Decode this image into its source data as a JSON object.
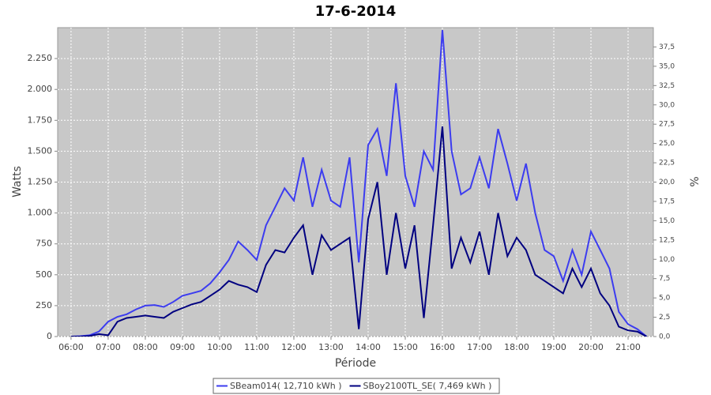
{
  "chart_data": {
    "type": "line",
    "title": "17-6-2014",
    "x_label": "Période",
    "y_label": "Watts",
    "y2_label": "%",
    "x": [
      6,
      6.25,
      6.5,
      6.75,
      7,
      7.25,
      7.5,
      7.75,
      8,
      8.25,
      8.5,
      8.75,
      9,
      9.25,
      9.5,
      9.75,
      10,
      10.25,
      10.5,
      10.75,
      11,
      11.25,
      11.5,
      11.75,
      12,
      12.25,
      12.5,
      12.75,
      13,
      13.25,
      13.5,
      13.75,
      14,
      14.25,
      14.5,
      14.75,
      15,
      15.25,
      15.5,
      15.75,
      16,
      16.25,
      16.5,
      16.75,
      17,
      17.25,
      17.5,
      17.75,
      18,
      18.25,
      18.5,
      18.75,
      19,
      19.25,
      19.5,
      19.75,
      20,
      20.25,
      20.5,
      20.75,
      21,
      21.25,
      21.5
    ],
    "series": [
      {
        "name": "SBeam014( 12,710 kWh )",
        "color": "#3c3cf0",
        "values": [
          0,
          3,
          10,
          40,
          120,
          160,
          180,
          220,
          250,
          255,
          240,
          280,
          330,
          350,
          370,
          430,
          520,
          620,
          770,
          700,
          620,
          900,
          1050,
          1200,
          1100,
          1450,
          1050,
          1350,
          1100,
          1050,
          1450,
          600,
          1550,
          1680,
          1300,
          2050,
          1300,
          1050,
          1500,
          1350,
          2480,
          1500,
          1150,
          1200,
          1450,
          1200,
          1680,
          1400,
          1100,
          1400,
          1000,
          700,
          650,
          450,
          700,
          500,
          850,
          700,
          550,
          200,
          100,
          60,
          0
        ]
      },
      {
        "name": "SBoy2100TL_SE( 7,469 kWh )",
        "color": "#000080",
        "values": [
          0,
          0,
          5,
          20,
          10,
          120,
          150,
          160,
          170,
          160,
          150,
          200,
          230,
          260,
          280,
          330,
          380,
          450,
          420,
          400,
          360,
          580,
          700,
          680,
          800,
          900,
          500,
          820,
          700,
          750,
          800,
          60,
          950,
          1250,
          500,
          1000,
          550,
          900,
          150,
          900,
          1700,
          550,
          800,
          600,
          850,
          500,
          1000,
          650,
          800,
          700,
          500,
          450,
          400,
          350,
          550,
          400,
          550,
          350,
          250,
          80,
          50,
          40,
          0
        ]
      }
    ],
    "xlim": [
      5.64,
      21.68
    ],
    "xticks": [
      {
        "value": 6,
        "label": "06:00"
      },
      {
        "value": 7,
        "label": "07:00"
      },
      {
        "value": 8,
        "label": "08:00"
      },
      {
        "value": 9,
        "label": "09:00"
      },
      {
        "value": 10,
        "label": "10:00"
      },
      {
        "value": 11,
        "label": "11:00"
      },
      {
        "value": 12,
        "label": "12:00"
      },
      {
        "value": 13,
        "label": "13:00"
      },
      {
        "value": 14,
        "label": "14:00"
      },
      {
        "value": 15,
        "label": "15:00"
      },
      {
        "value": 16,
        "label": "16:00"
      },
      {
        "value": 17,
        "label": "17:00"
      },
      {
        "value": 18,
        "label": "18:00"
      },
      {
        "value": 19,
        "label": "19:00"
      },
      {
        "value": 20,
        "label": "20:00"
      },
      {
        "value": 21,
        "label": "21:00"
      }
    ],
    "ylim": [
      0,
      2500
    ],
    "yticks": [
      0,
      250,
      500,
      750,
      {
        "value": 1000,
        "label": "1.000"
      },
      {
        "value": 1250,
        "label": "1.250"
      },
      {
        "value": 1500,
        "label": "1.500"
      },
      {
        "value": 1750,
        "label": "1.750"
      },
      {
        "value": 2000,
        "label": "2.000"
      },
      {
        "value": 2250,
        "label": "2.250"
      }
    ],
    "y2lim": [
      0,
      40
    ],
    "y2ticks": [
      {
        "value": 0,
        "label": "0,0"
      },
      {
        "value": 2.5,
        "label": "2,5"
      },
      {
        "value": 5,
        "label": "5,0"
      },
      {
        "value": 7.5,
        "label": "7,5"
      },
      {
        "value": 10,
        "label": "10,0"
      },
      {
        "value": 12.5,
        "label": "12,5"
      },
      {
        "value": 15,
        "label": "15,0"
      },
      {
        "value": 17.5,
        "label": "17,5"
      },
      {
        "value": 20,
        "label": "20,0"
      },
      {
        "value": 22.5,
        "label": "22,5"
      },
      {
        "value": 25,
        "label": "25,0"
      },
      {
        "value": 27.5,
        "label": "27,5"
      },
      {
        "value": 30,
        "label": "30,0"
      },
      {
        "value": 32.5,
        "label": "32,5"
      },
      {
        "value": 35,
        "label": "35,0"
      },
      {
        "value": 37.5,
        "label": "37,5"
      }
    ],
    "grid": true
  }
}
